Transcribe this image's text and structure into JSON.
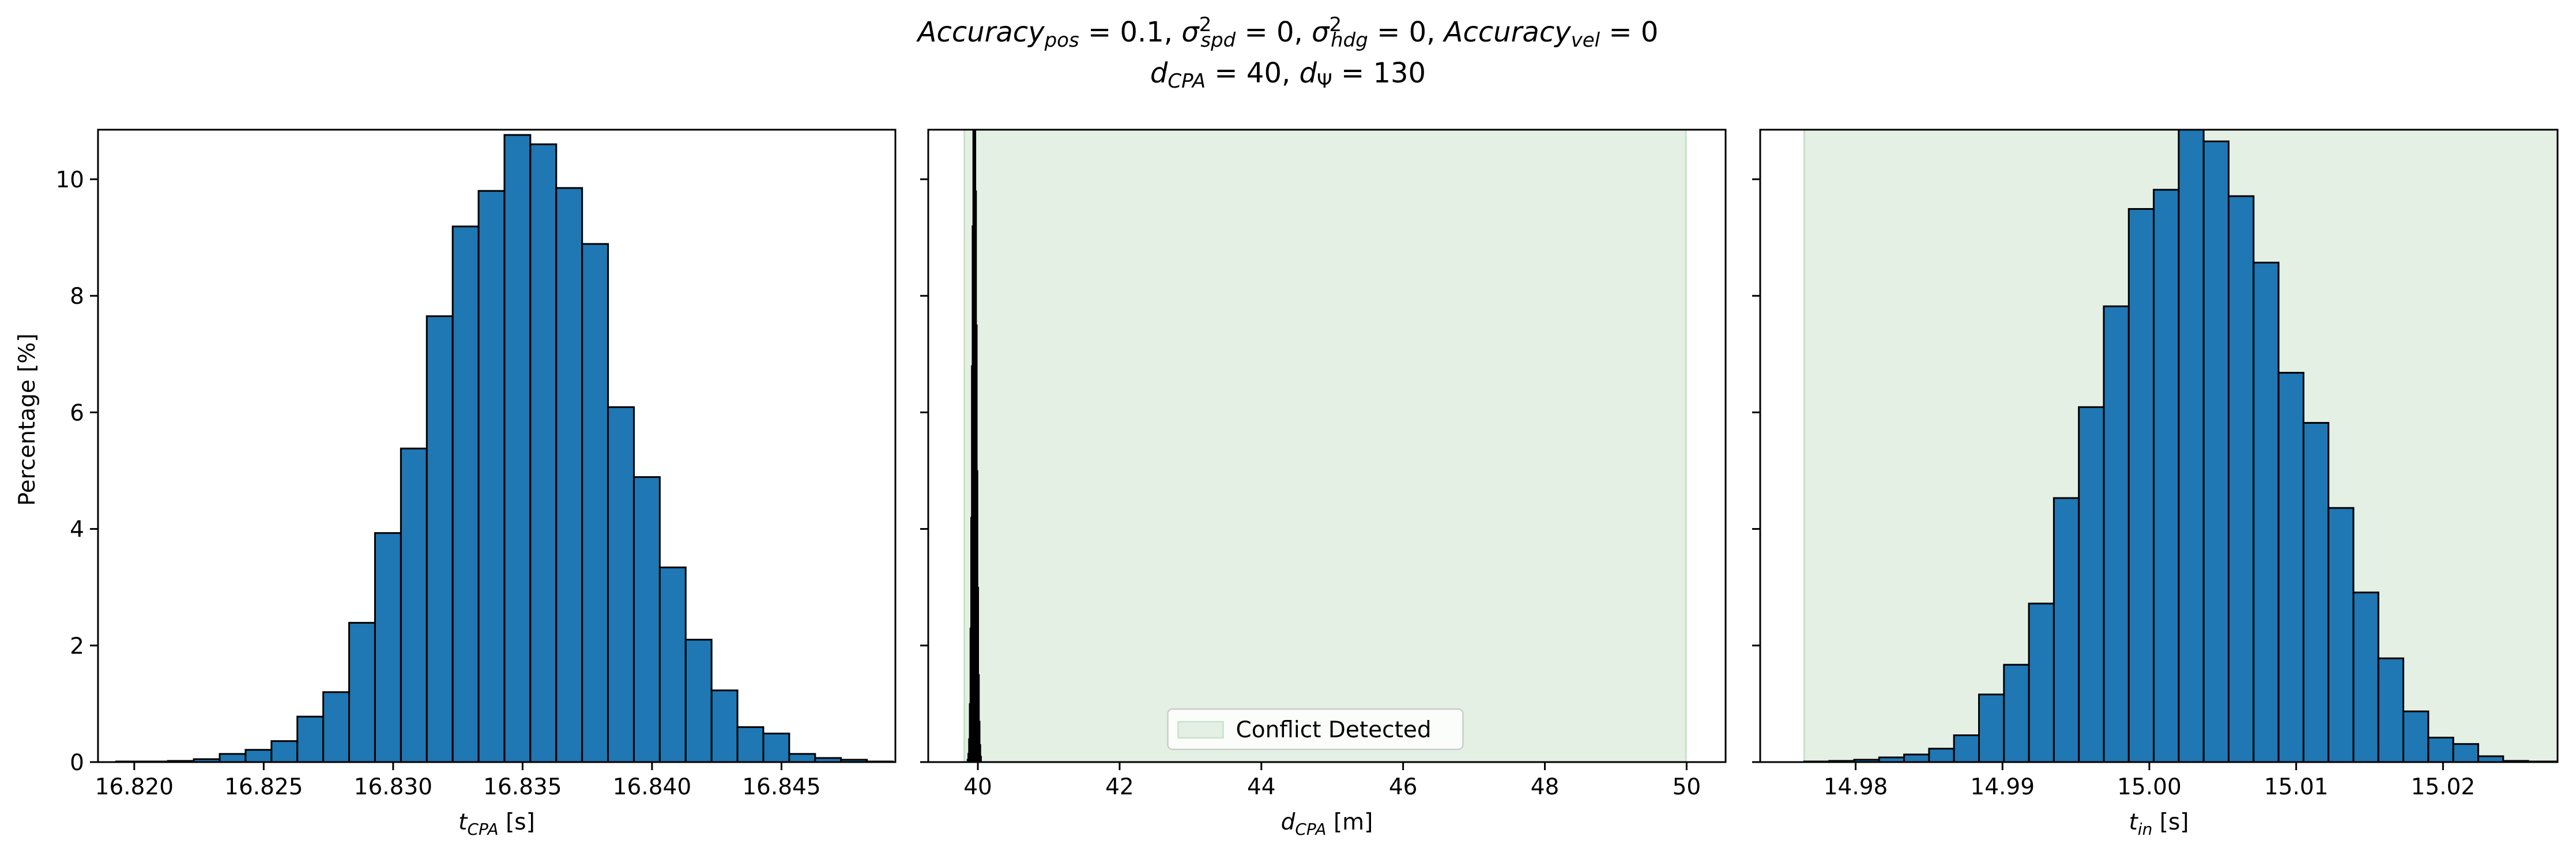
{
  "figure": {
    "title": {
      "line1": [
        {
          "t": "Accuracy",
          "style": "i"
        },
        {
          "t": "pos",
          "style": "isub"
        },
        {
          "t": " = 0.1, ",
          "style": "n"
        },
        {
          "t": "σ",
          "style": "i"
        },
        {
          "t": "2",
          "style": "nsup"
        },
        {
          "t": "spd",
          "style": "isub"
        },
        {
          "t": " = 0, ",
          "style": "n"
        },
        {
          "t": "σ",
          "style": "i"
        },
        {
          "t": "2",
          "style": "nsup"
        },
        {
          "t": "hdg",
          "style": "isub"
        },
        {
          "t": " = 0, ",
          "style": "n"
        },
        {
          "t": "Accuracy",
          "style": "i"
        },
        {
          "t": "vel",
          "style": "isub"
        },
        {
          "t": " = 0",
          "style": "n"
        }
      ],
      "line2": [
        {
          "t": "d",
          "style": "i"
        },
        {
          "t": "CPA",
          "style": "isub"
        },
        {
          "t": " = 40, ",
          "style": "n"
        },
        {
          "t": "d",
          "style": "i"
        },
        {
          "t": "Ψ",
          "style": "nsub"
        },
        {
          "t": " = 130",
          "style": "n"
        }
      ]
    },
    "shared_ylabel": "Percentage [%]",
    "colors": {
      "bar": "#1f77b4",
      "edge": "#000000",
      "conflict": "#e4f0e4",
      "conflict_edge": "#c8e2c8"
    }
  },
  "chart_data": [
    {
      "type": "bar",
      "xlabel": {
        "main": "t",
        "sub": "CPA",
        "unit": " [s]"
      },
      "ylabel": "Percentage [%]",
      "xlim": [
        16.8186,
        16.8494
      ],
      "ylim": [
        0,
        10.85
      ],
      "xticks": [
        16.82,
        16.825,
        16.83,
        16.835,
        16.84,
        16.845
      ],
      "xtick_labels": [
        "16.820",
        "16.825",
        "16.830",
        "16.835",
        "16.840",
        "16.845"
      ],
      "yticks": [
        0,
        2,
        4,
        6,
        8,
        10
      ],
      "ytick_labels": [
        "0",
        "2",
        "4",
        "6",
        "8",
        "10"
      ],
      "bin_start": 16.8193,
      "bin_width": 0.001,
      "values": [
        0.01,
        0.01,
        0.02,
        0.05,
        0.14,
        0.21,
        0.36,
        0.78,
        1.2,
        2.39,
        3.93,
        5.38,
        7.65,
        9.19,
        9.8,
        10.76,
        10.6,
        9.85,
        8.89,
        6.09,
        4.89,
        3.34,
        2.1,
        1.23,
        0.6,
        0.49,
        0.14,
        0.07,
        0.04,
        0.01
      ],
      "show_ytick_labels": true
    },
    {
      "type": "bar",
      "xlabel": {
        "main": "d",
        "sub": "CPA",
        "unit": " [m]"
      },
      "xlim": [
        39.3,
        50.55
      ],
      "ylim": [
        0,
        10.85
      ],
      "xticks": [
        40,
        42,
        44,
        46,
        48,
        50
      ],
      "xtick_labels": [
        "40",
        "42",
        "44",
        "46",
        "48",
        "50"
      ],
      "yticks": [
        0,
        2,
        4,
        6,
        8,
        10
      ],
      "conflict_region": [
        39.81,
        49.99
      ],
      "legend": {
        "label": "Conflict Detected",
        "position": "lower center"
      },
      "bin_start": 39.85,
      "bin_width": 0.01,
      "values": [
        0.05,
        0.15,
        0.4,
        1.0,
        2.3,
        4.2,
        6.8,
        9.2,
        10.85,
        10.85,
        10.85,
        10.85,
        9.8,
        7.5,
        5.0,
        3.0,
        1.5,
        0.7,
        0.3,
        0.1
      ],
      "show_ytick_labels": false
    },
    {
      "type": "bar",
      "xlabel": {
        "main": "t",
        "sub": "in",
        "unit": " [s]"
      },
      "xlim": [
        14.9735,
        15.0278
      ],
      "ylim": [
        0,
        10.85
      ],
      "xticks": [
        14.98,
        14.99,
        15.0,
        15.01,
        15.02
      ],
      "xtick_labels": [
        "14.98",
        "14.99",
        "15.00",
        "15.01",
        "15.02"
      ],
      "yticks": [
        0,
        2,
        4,
        6,
        8,
        10
      ],
      "conflict_region": [
        14.9765,
        15.0278
      ],
      "bin_start": 14.9765,
      "bin_width": 0.0017,
      "values": [
        0.01,
        0.02,
        0.04,
        0.08,
        0.13,
        0.23,
        0.46,
        1.16,
        1.67,
        2.72,
        4.53,
        6.09,
        7.82,
        9.49,
        9.82,
        10.9,
        10.65,
        9.71,
        8.57,
        6.68,
        5.82,
        4.36,
        2.91,
        1.78,
        0.87,
        0.42,
        0.31,
        0.1,
        0.02,
        0.01,
        0.01
      ],
      "show_ytick_labels": false
    }
  ]
}
